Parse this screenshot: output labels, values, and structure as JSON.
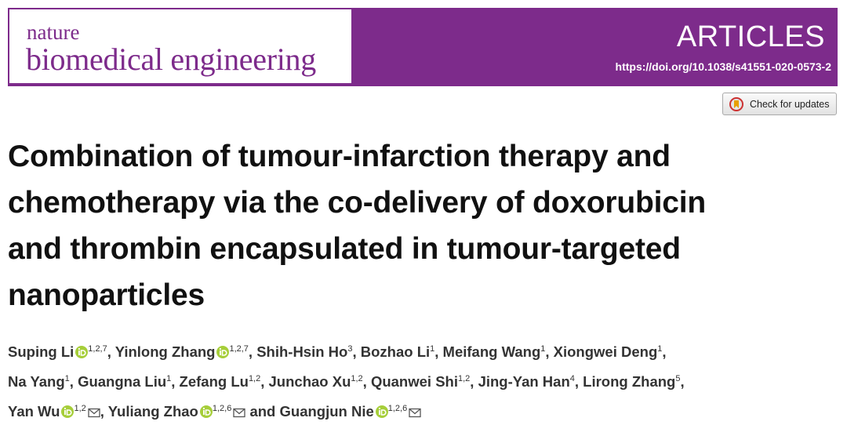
{
  "header": {
    "journal_small": "nature",
    "journal_name": "biomedical engineering",
    "section": "ARTICLES",
    "doi": "https://doi.org/10.1038/s41551-020-0573-2"
  },
  "check_updates": "Check for updates",
  "title_lines": [
    "Combination of tumour-infarction therapy and",
    "chemotherapy via the co-delivery of doxorubicin",
    "and thrombin encapsulated in tumour-targeted",
    "nanoparticles"
  ],
  "author_lines": [
    [
      {
        "name": "Suping Li",
        "orcid": true,
        "sup": "1,2,7",
        "sep": ","
      },
      {
        "name": "Yinlong Zhang",
        "orcid": true,
        "sup": "1,2,7",
        "sep": ","
      },
      {
        "name": "Shih-Hsin Ho",
        "sup": "3",
        "sep": ","
      },
      {
        "name": "Bozhao Li",
        "sup": "1",
        "sep": ","
      },
      {
        "name": "Meifang Wang",
        "sup": "1",
        "sep": ","
      },
      {
        "name": "Xiongwei Deng",
        "sup": "1",
        "sep": ","
      }
    ],
    [
      {
        "name": "Na Yang",
        "sup": "1",
        "sep": ","
      },
      {
        "name": "Guangna Liu",
        "sup": "1",
        "sep": ","
      },
      {
        "name": "Zefang Lu",
        "sup": "1,2",
        "sep": ","
      },
      {
        "name": "Junchao Xu",
        "sup": "1,2",
        "sep": ","
      },
      {
        "name": "Quanwei Shi",
        "sup": "1,2",
        "sep": ","
      },
      {
        "name": "Jing-Yan Han",
        "sup": "4",
        "sep": ","
      },
      {
        "name": "Lirong Zhang",
        "sup": "5",
        "sep": ","
      }
    ],
    [
      {
        "name": "Yan Wu",
        "orcid": true,
        "sup": "1,2",
        "email": true,
        "sep": ","
      },
      {
        "name": "Yuliang Zhao",
        "orcid": true,
        "sup": "1,2,6",
        "email": true
      },
      {
        "name": "and"
      },
      {
        "name": "Guangjun Nie",
        "orcid": true,
        "sup": "1,2,6",
        "email": true
      }
    ]
  ]
}
